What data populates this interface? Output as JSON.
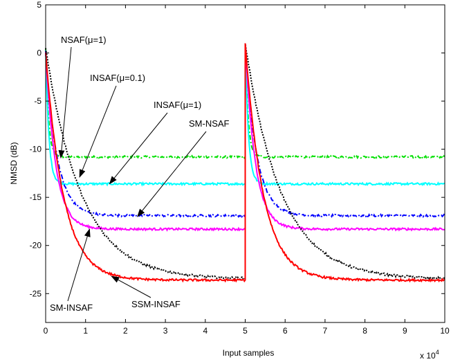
{
  "chart_data": {
    "type": "line",
    "xlabel": "Input samples",
    "ylabel": "NMSD (dB)",
    "x_exponent_label": "x 10",
    "x_exponent_power": "4",
    "xlim": [
      0,
      10
    ],
    "ylim": [
      -28,
      5
    ],
    "xticks": [
      "0",
      "1",
      "2",
      "3",
      "4",
      "5",
      "6",
      "7",
      "8",
      "9",
      "10"
    ],
    "yticks": [
      "5",
      "0",
      "-5",
      "-10",
      "-15",
      "-20",
      "-25"
    ],
    "grid": false,
    "series": [
      {
        "name": "NSAF(μ=1)",
        "color": "#00e000",
        "style": "dashdot",
        "start": 0.5,
        "steady": -10.8,
        "tau": 0.07
      },
      {
        "name": "INSAF(μ=1)",
        "color": "#00ffff",
        "style": "solid",
        "start": 0.3,
        "steady": -13.6,
        "tau": 0.08
      },
      {
        "name": "SM-NSAF",
        "color": "#0000ff",
        "style": "dashdot",
        "start": 0.2,
        "steady": -16.9,
        "tau": 0.28
      },
      {
        "name": "SM-INSAF",
        "color": "#ff00ff",
        "style": "solid",
        "start": 0.1,
        "steady": -18.3,
        "tau": 0.25
      },
      {
        "name": "INSAF(μ=0.1)",
        "color": "#000000",
        "style": "dotted",
        "start": 0.5,
        "steady": -23.5,
        "tau": 0.9
      },
      {
        "name": "SSM-INSAF",
        "color": "#ff0000",
        "style": "solid",
        "start": 0.0,
        "steady": -23.6,
        "tau": 0.45
      }
    ],
    "change_point": 5,
    "jump_peak": 1.0,
    "annotations": [
      {
        "text": "NSAF(μ=1)",
        "arrow_to": [
          0.38,
          -10.9
        ]
      },
      {
        "text": "INSAF(μ=0.1)",
        "arrow_to": [
          0.85,
          -12.9
        ]
      },
      {
        "text": "INSAF(μ=1)",
        "arrow_to": [
          1.6,
          -13.6
        ]
      },
      {
        "text": "SM-NSAF",
        "arrow_to": [
          2.3,
          -17.0
        ]
      },
      {
        "text": "SM-INSAF",
        "arrow_to": [
          1.1,
          -18.3
        ]
      },
      {
        "text": "SSM-INSAF",
        "arrow_to": [
          1.65,
          -23.2
        ]
      }
    ]
  }
}
